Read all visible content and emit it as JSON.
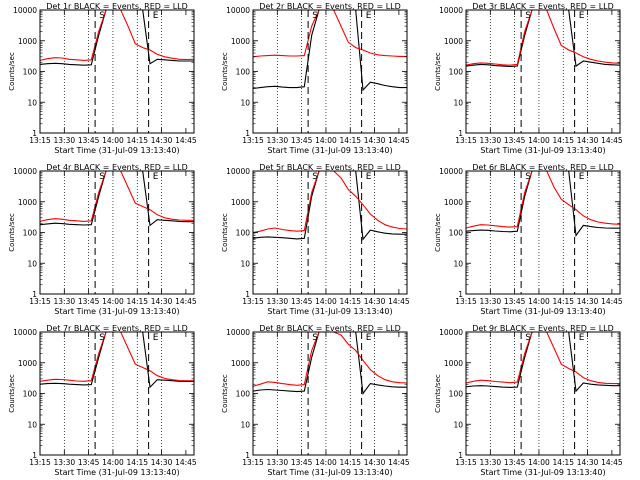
{
  "chart_data": [
    {
      "type": "line",
      "title": "Det 1r BLACK = Events, RED = LLD",
      "xlabel": "Start Time (31-Jul-09 13:13:40)",
      "ylabel": "Counts/sec",
      "xlim": [
        "13:15",
        "14:50"
      ],
      "ylim": [
        1,
        10000
      ],
      "yscale": "log",
      "xticks": [
        "13:15",
        "13:30",
        "13:45",
        "14:00",
        "14:15",
        "14:30",
        "14:45"
      ],
      "yticks": [
        "1",
        "10",
        "100",
        "1000",
        "10000"
      ],
      "markers": [
        {
          "time": "13:49",
          "label": "S"
        },
        {
          "time": "14:22",
          "label": "E"
        }
      ],
      "series": [
        {
          "color": "#000000",
          "values": [
            170,
            180,
            185,
            180,
            170,
            165,
            160,
            165,
            1500,
            10000,
            10000,
            10000,
            10000,
            10000,
            10000,
            180,
            250,
            240,
            230,
            220,
            220,
            220
          ]
        },
        {
          "color": "#ff0000",
          "values": [
            230,
            260,
            280,
            275,
            250,
            240,
            230,
            240,
            2000,
            10000,
            10000,
            10000,
            3000,
            800,
            600,
            500,
            360,
            300,
            270,
            250,
            245,
            250
          ]
        }
      ]
    },
    {
      "type": "line",
      "title": "Det 2r BLACK = Events, RED = LLD",
      "xlabel": "Start Time (31-Jul-09 13:13:40)",
      "ylabel": "Counts/sec",
      "xlim": [
        "13:15",
        "14:50"
      ],
      "ylim": [
        1,
        10000
      ],
      "yscale": "log",
      "xticks": [
        "13:15",
        "13:30",
        "13:45",
        "14:00",
        "14:15",
        "14:30",
        "14:45"
      ],
      "yticks": [
        "1",
        "10",
        "100",
        "1000",
        "10000"
      ],
      "markers": [
        {
          "time": "13:49",
          "label": "S"
        },
        {
          "time": "14:22",
          "label": "E"
        }
      ],
      "series": [
        {
          "color": "#000000",
          "values": [
            28,
            30,
            32,
            33,
            31,
            30,
            30,
            32,
            1500,
            10000,
            10000,
            10000,
            10000,
            10000,
            10000,
            25,
            45,
            40,
            35,
            32,
            30,
            30
          ]
        },
        {
          "color": "#ff0000",
          "values": [
            300,
            320,
            330,
            340,
            330,
            320,
            320,
            330,
            3000,
            10000,
            10000,
            10000,
            3000,
            900,
            600,
            500,
            400,
            350,
            330,
            320,
            310,
            310
          ]
        }
      ]
    },
    {
      "type": "line",
      "title": "Det 3r BLACK = Events, RED = LLD",
      "xlabel": "Start Time (31-Jul-09 13:13:40)",
      "ylabel": "Counts/sec",
      "xlim": [
        "13:15",
        "14:50"
      ],
      "ylim": [
        1,
        10000
      ],
      "yscale": "log",
      "xticks": [
        "13:15",
        "13:30",
        "13:45",
        "14:00",
        "14:15",
        "14:30",
        "14:45"
      ],
      "yticks": [
        "1",
        "10",
        "100",
        "1000",
        "10000"
      ],
      "markers": [
        {
          "time": "13:49",
          "label": "S"
        },
        {
          "time": "14:22",
          "label": "E"
        }
      ],
      "series": [
        {
          "color": "#000000",
          "values": [
            150,
            160,
            170,
            165,
            155,
            150,
            145,
            150,
            1500,
            10000,
            10000,
            10000,
            10000,
            10000,
            10000,
            150,
            220,
            200,
            185,
            170,
            165,
            160
          ]
        },
        {
          "color": "#ff0000",
          "values": [
            160,
            180,
            190,
            185,
            175,
            165,
            160,
            170,
            2000,
            10000,
            10000,
            10000,
            2500,
            700,
            500,
            400,
            300,
            250,
            220,
            200,
            190,
            185
          ]
        }
      ]
    },
    {
      "type": "line",
      "title": "Det 4r BLACK = Events, RED = LLD",
      "xlabel": "Start Time (31-Jul-09 13:13:40)",
      "ylabel": "Counts/sec",
      "xlim": [
        "13:15",
        "14:50"
      ],
      "ylim": [
        1,
        10000
      ],
      "yscale": "log",
      "xticks": [
        "13:15",
        "13:30",
        "13:45",
        "14:00",
        "14:15",
        "14:30",
        "14:45"
      ],
      "yticks": [
        "1",
        "10",
        "100",
        "1000",
        "10000"
      ],
      "markers": [
        {
          "time": "13:49",
          "label": "S"
        },
        {
          "time": "14:22",
          "label": "E"
        }
      ],
      "series": [
        {
          "color": "#000000",
          "values": [
            180,
            190,
            200,
            195,
            185,
            180,
            175,
            180,
            1500,
            10000,
            10000,
            10000,
            10000,
            10000,
            10000,
            170,
            260,
            250,
            240,
            230,
            225,
            225
          ]
        },
        {
          "color": "#ff0000",
          "values": [
            230,
            260,
            280,
            270,
            250,
            240,
            230,
            240,
            2000,
            10000,
            10000,
            10000,
            3000,
            900,
            700,
            550,
            380,
            300,
            270,
            255,
            250,
            250
          ]
        }
      ]
    },
    {
      "type": "line",
      "title": "Det 5r BLACK = Events, RED = LLD",
      "xlabel": "Start Time (31-Jul-09 13:13:40)",
      "ylabel": "Counts/sec",
      "xlim": [
        "13:15",
        "14:50"
      ],
      "ylim": [
        1,
        10000
      ],
      "yscale": "log",
      "xticks": [
        "13:15",
        "13:30",
        "13:45",
        "14:00",
        "14:15",
        "14:30",
        "14:45"
      ],
      "yticks": [
        "1",
        "10",
        "100",
        "1000",
        "10000"
      ],
      "markers": [
        {
          "time": "13:49",
          "label": "S"
        },
        {
          "time": "14:22",
          "label": "E"
        }
      ],
      "series": [
        {
          "color": "#000000",
          "values": [
            65,
            70,
            72,
            70,
            68,
            65,
            62,
            65,
            1500,
            10000,
            10000,
            10000,
            10000,
            10000,
            10000,
            60,
            120,
            105,
            95,
            90,
            88,
            88
          ]
        },
        {
          "color": "#ff0000",
          "values": [
            100,
            110,
            130,
            140,
            125,
            115,
            110,
            115,
            2000,
            10000,
            10000,
            10000,
            6000,
            2500,
            1500,
            800,
            400,
            250,
            180,
            150,
            135,
            130
          ]
        }
      ]
    },
    {
      "type": "line",
      "title": "Det 6r BLACK = Events, RED = LLD",
      "xlabel": "Start Time (31-Jul-09 13:13:40)",
      "ylabel": "Counts/sec",
      "xlim": [
        "13:15",
        "14:50"
      ],
      "ylim": [
        1,
        10000
      ],
      "yscale": "log",
      "xticks": [
        "13:15",
        "13:30",
        "13:45",
        "14:00",
        "14:15",
        "14:30",
        "14:45"
      ],
      "yticks": [
        "1",
        "10",
        "100",
        "1000",
        "10000"
      ],
      "markers": [
        {
          "time": "13:49",
          "label": "S"
        },
        {
          "time": "14:22",
          "label": "E"
        }
      ],
      "series": [
        {
          "color": "#000000",
          "values": [
            110,
            115,
            120,
            118,
            112,
            108,
            105,
            110,
            1500,
            10000,
            10000,
            10000,
            10000,
            10000,
            10000,
            80,
            170,
            155,
            145,
            140,
            138,
            138
          ]
        },
        {
          "color": "#ff0000",
          "values": [
            140,
            160,
            180,
            175,
            165,
            155,
            150,
            155,
            2000,
            10000,
            10000,
            10000,
            3000,
            1200,
            800,
            550,
            350,
            260,
            220,
            200,
            190,
            185
          ]
        }
      ]
    },
    {
      "type": "line",
      "title": "Det 7r BLACK = Events, RED = LLD",
      "xlabel": "Start Time (31-Jul-09 13:13:40)",
      "ylabel": "Counts/sec",
      "xlim": [
        "13:15",
        "14:50"
      ],
      "ylim": [
        1,
        10000
      ],
      "yscale": "log",
      "xticks": [
        "13:15",
        "13:30",
        "13:45",
        "14:00",
        "14:15",
        "14:30",
        "14:45"
      ],
      "yticks": [
        "1",
        "10",
        "100",
        "1000",
        "10000"
      ],
      "markers": [
        {
          "time": "13:49",
          "label": "S"
        },
        {
          "time": "14:22",
          "label": "E"
        }
      ],
      "series": [
        {
          "color": "#000000",
          "values": [
            200,
            210,
            215,
            210,
            200,
            195,
            190,
            195,
            1500,
            10000,
            10000,
            10000,
            10000,
            10000,
            10000,
            160,
            280,
            270,
            260,
            250,
            245,
            245
          ]
        },
        {
          "color": "#ff0000",
          "values": [
            250,
            270,
            290,
            285,
            270,
            255,
            250,
            260,
            2000,
            10000,
            10000,
            10000,
            3000,
            900,
            700,
            550,
            380,
            310,
            280,
            265,
            260,
            260
          ]
        }
      ]
    },
    {
      "type": "line",
      "title": "Det 8r BLACK = Events, RED = LLD",
      "xlabel": "Start Time (31-Jul-09 13:13:40)",
      "ylabel": "Counts/sec",
      "xlim": [
        "13:15",
        "14:50"
      ],
      "ylim": [
        1,
        10000
      ],
      "yscale": "log",
      "xticks": [
        "13:15",
        "13:30",
        "13:45",
        "14:00",
        "14:15",
        "14:30",
        "14:45"
      ],
      "yticks": [
        "1",
        "10",
        "100",
        "1000",
        "10000"
      ],
      "markers": [
        {
          "time": "13:49",
          "label": "S"
        },
        {
          "time": "14:22",
          "label": "E"
        }
      ],
      "series": [
        {
          "color": "#000000",
          "values": [
            120,
            130,
            135,
            130,
            125,
            120,
            115,
            120,
            1500,
            10000,
            10000,
            10000,
            10000,
            10000,
            10000,
            100,
            210,
            190,
            175,
            165,
            160,
            160
          ]
        },
        {
          "color": "#ff0000",
          "values": [
            170,
            200,
            240,
            230,
            210,
            195,
            185,
            195,
            2500,
            10000,
            10000,
            10000,
            8000,
            4000,
            2500,
            1200,
            600,
            380,
            280,
            240,
            225,
            220
          ]
        }
      ]
    },
    {
      "type": "line",
      "title": "Det 9r BLACK = Events, RED = LLD",
      "xlabel": "Start Time (31-Jul-09 13:13:40)",
      "ylabel": "Counts/sec",
      "xlim": [
        "13:15",
        "14:50"
      ],
      "ylim": [
        1,
        10000
      ],
      "yscale": "log",
      "xticks": [
        "13:15",
        "13:30",
        "13:45",
        "14:00",
        "14:15",
        "14:30",
        "14:45"
      ],
      "yticks": [
        "1",
        "10",
        "100",
        "1000",
        "10000"
      ],
      "markers": [
        {
          "time": "13:49",
          "label": "S"
        },
        {
          "time": "14:22",
          "label": "E"
        }
      ],
      "series": [
        {
          "color": "#000000",
          "values": [
            165,
            175,
            180,
            175,
            168,
            162,
            158,
            162,
            1500,
            10000,
            10000,
            10000,
            10000,
            10000,
            10000,
            120,
            220,
            200,
            190,
            185,
            180,
            180
          ]
        },
        {
          "color": "#ff0000",
          "values": [
            220,
            250,
            270,
            260,
            245,
            235,
            225,
            235,
            2000,
            10000,
            10000,
            10000,
            3000,
            900,
            650,
            500,
            330,
            260,
            230,
            215,
            210,
            210
          ]
        }
      ]
    }
  ]
}
